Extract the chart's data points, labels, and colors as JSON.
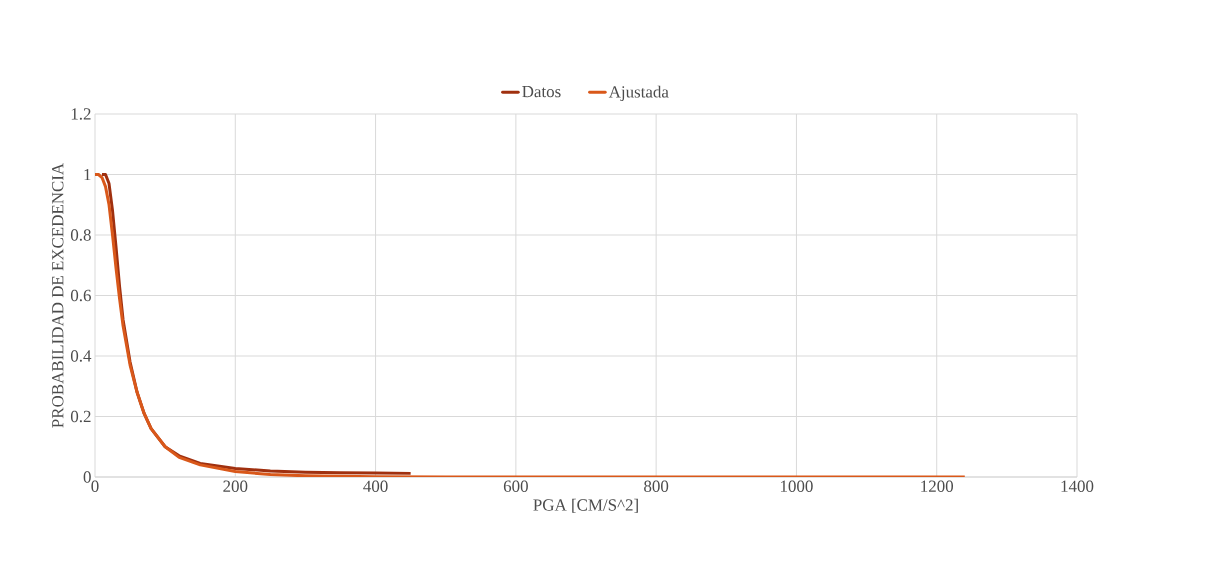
{
  "chart_data": {
    "type": "line",
    "xlabel": "PGA [CM/S^2]",
    "ylabel": "PROBABILIDAD DE EXCEDENCIA",
    "xlim": [
      0,
      1400
    ],
    "ylim": [
      0,
      1.2
    ],
    "xticks": [
      0,
      200,
      400,
      600,
      800,
      1000,
      1200,
      1400
    ],
    "yticks": [
      0,
      0.2,
      0.4,
      0.6,
      0.8,
      1,
      1.2
    ],
    "grid": true,
    "legend": "top",
    "marker": "none",
    "line_style": "solid",
    "series": [
      {
        "name": "Datos",
        "color": "#a0300f",
        "x": [
          10,
          15,
          20,
          25,
          30,
          35,
          40,
          50,
          60,
          70,
          80,
          100,
          120,
          150,
          200,
          250,
          300,
          350,
          400,
          450
        ],
        "values": [
          1,
          1,
          0.97,
          0.88,
          0.76,
          0.63,
          0.52,
          0.38,
          0.28,
          0.21,
          0.16,
          0.1,
          0.07,
          0.045,
          0.028,
          0.02,
          0.016,
          0.014,
          0.013,
          0.012
        ]
      },
      {
        "name": "Ajustada",
        "color": "#d9581a",
        "x": [
          0,
          5,
          10,
          15,
          20,
          25,
          30,
          35,
          40,
          50,
          60,
          70,
          80,
          100,
          120,
          150,
          200,
          250,
          300,
          400,
          500,
          800,
          1240
        ],
        "values": [
          1,
          1,
          0.99,
          0.96,
          0.9,
          0.8,
          0.69,
          0.59,
          0.5,
          0.37,
          0.28,
          0.21,
          0.16,
          0.1,
          0.065,
          0.04,
          0.018,
          0.008,
          0.004,
          0.001,
          0,
          0,
          0
        ]
      }
    ]
  }
}
